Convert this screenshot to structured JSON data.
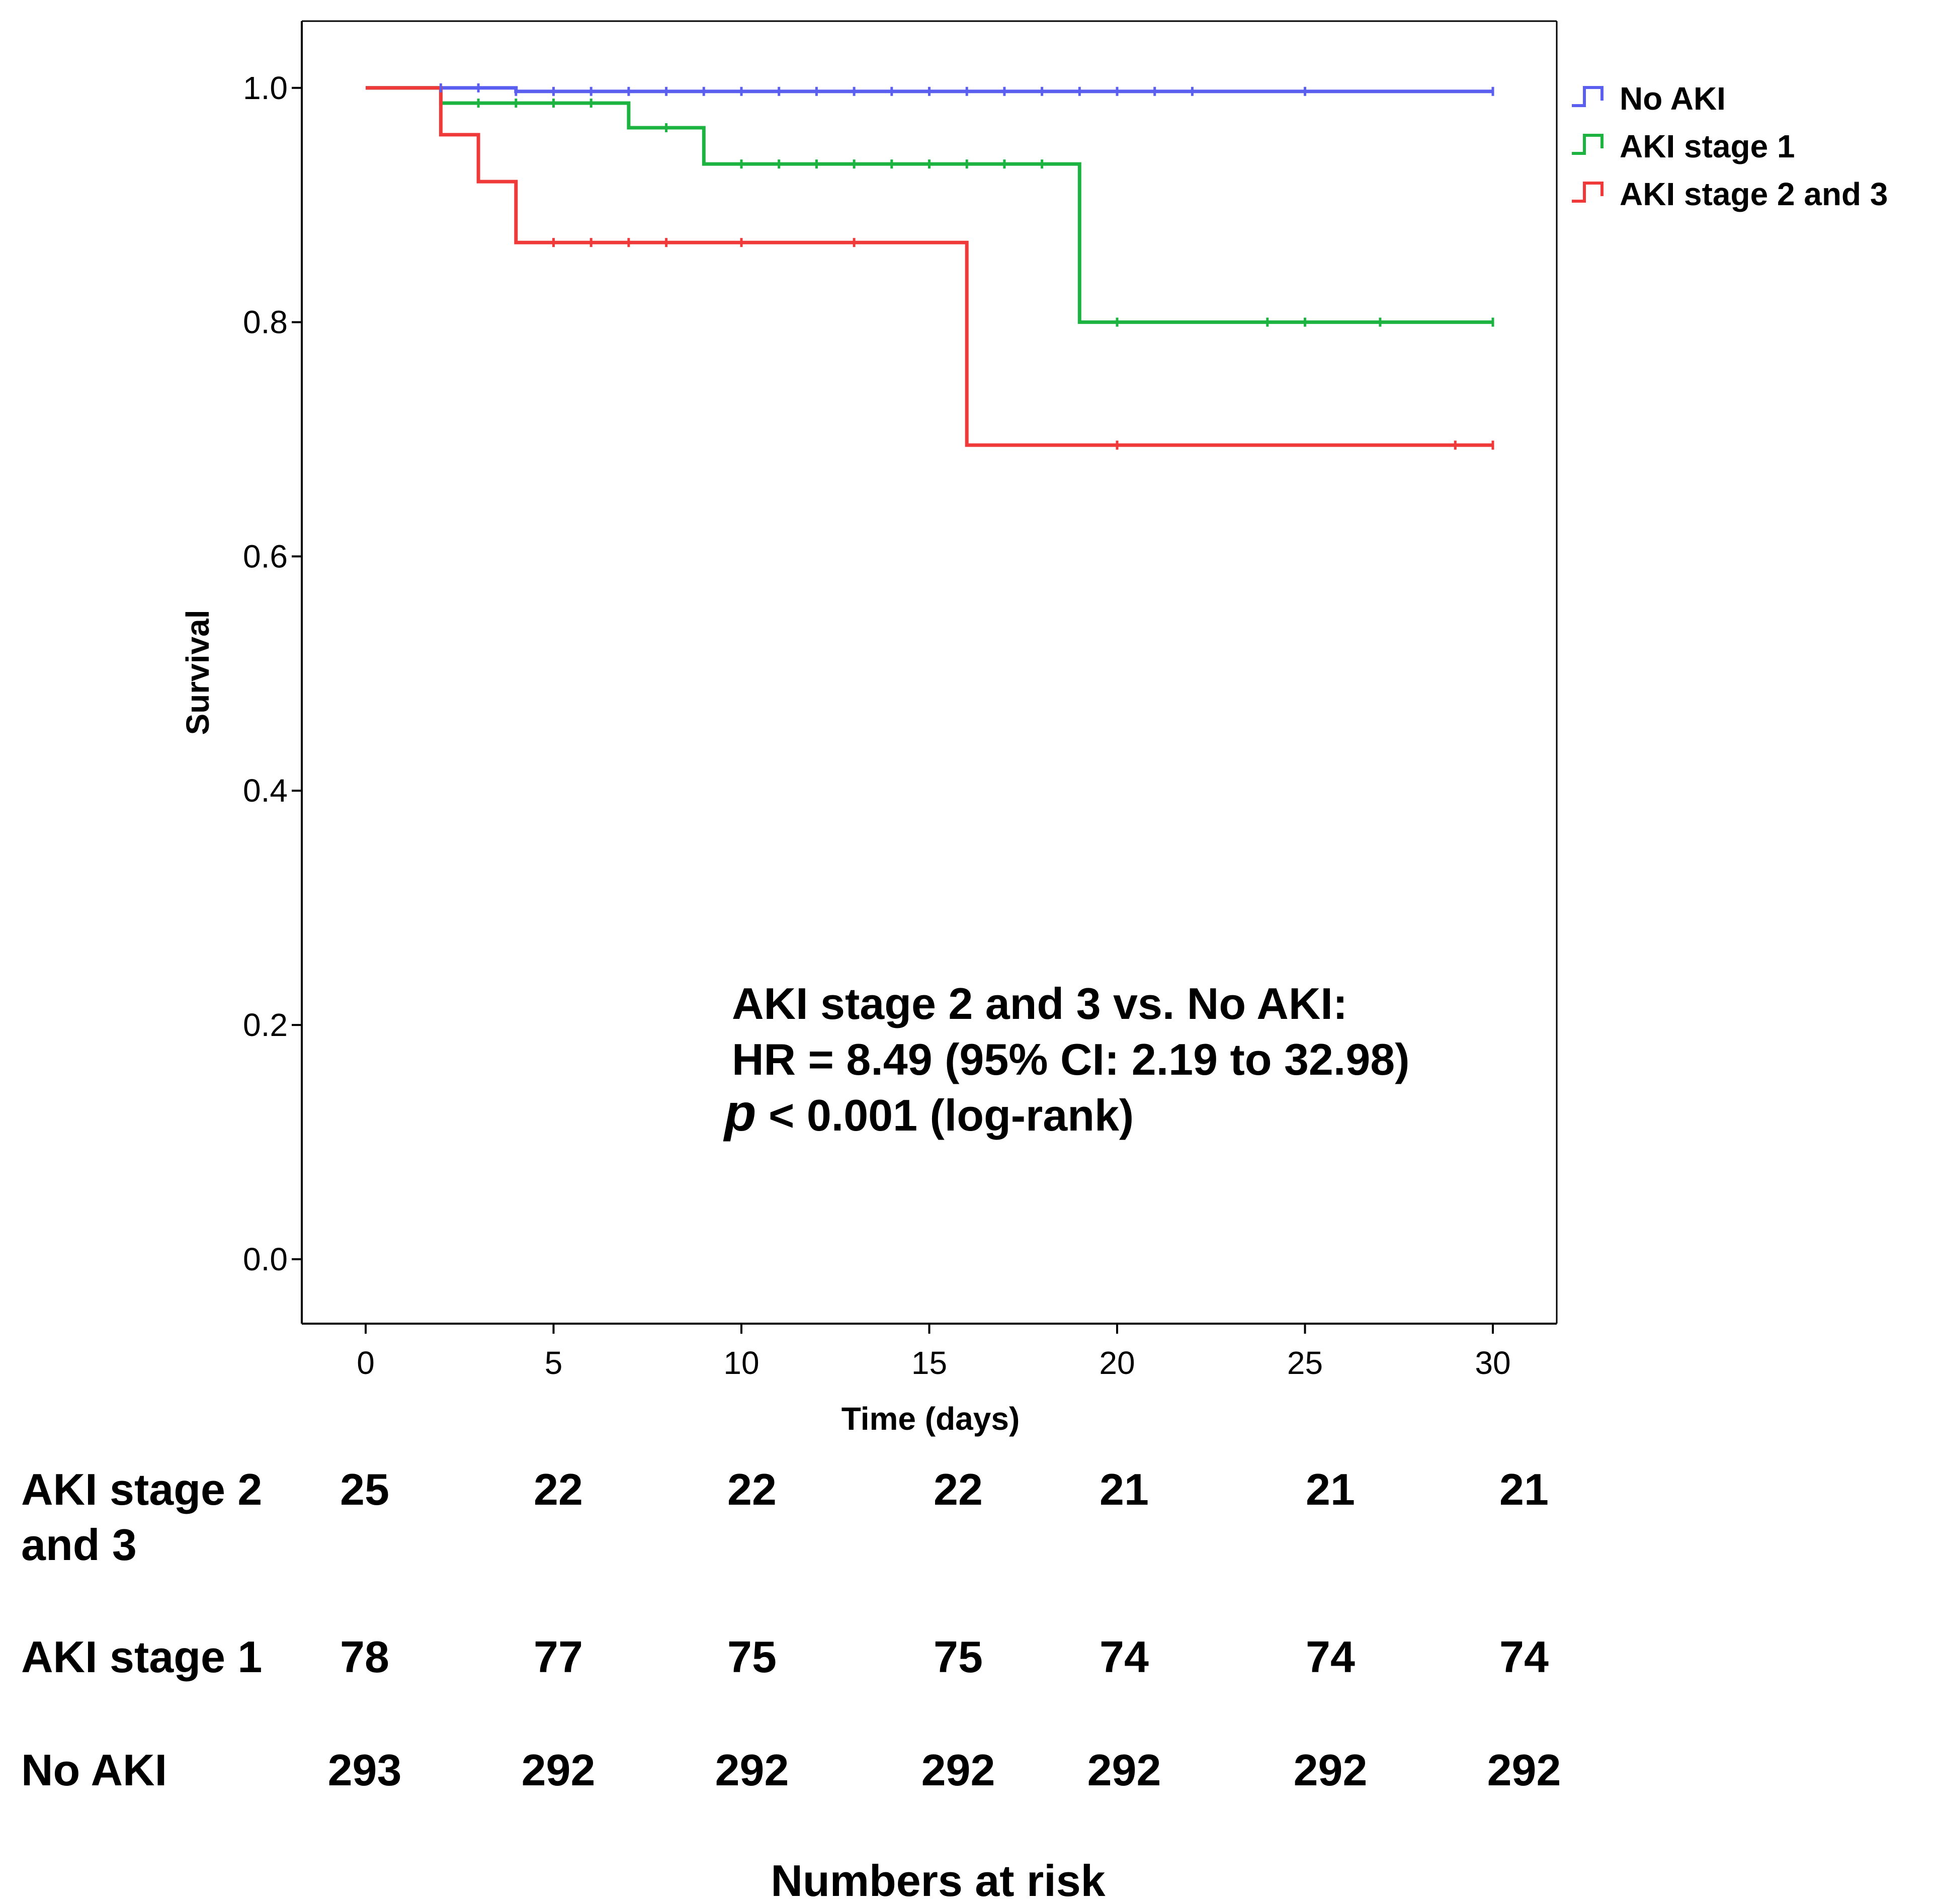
{
  "chart_data": {
    "type": "line",
    "subtype": "kaplan-meier",
    "xlabel": "Time (days)",
    "ylabel": "Survival",
    "xlim": [
      -1.7,
      31.7
    ],
    "ylim": [
      -0.055,
      1.057
    ],
    "x_ticks": [
      0,
      5,
      10,
      15,
      20,
      25,
      30
    ],
    "x_tick_labels": [
      "0",
      "5",
      "10",
      "15",
      "20",
      "25",
      "30"
    ],
    "y_ticks": [
      0.0,
      0.2,
      0.4,
      0.6,
      0.8,
      1.0
    ],
    "y_tick_labels": [
      "0.0",
      "0.2",
      "0.4",
      "0.6",
      "0.8",
      "1.0"
    ],
    "grid": false,
    "legend_position": "top-right outside",
    "series": [
      {
        "name": "No AKI",
        "color": "#5a5ff0",
        "steps": [
          [
            0,
            1.0
          ],
          [
            4,
            0.997
          ],
          [
            30,
            0.997
          ]
        ],
        "censored_x": [
          2,
          3,
          4,
          5,
          6,
          7,
          8,
          9,
          10,
          11,
          12,
          13,
          14,
          15,
          16,
          17,
          18,
          19,
          20,
          21,
          22,
          25,
          30
        ]
      },
      {
        "name": "AKI stage 1",
        "color": "#1db341",
        "steps": [
          [
            0,
            1.0
          ],
          [
            2,
            0.987
          ],
          [
            7,
            0.966
          ],
          [
            9,
            0.935
          ],
          [
            19,
            0.8
          ],
          [
            30,
            0.8
          ]
        ],
        "censored_x": [
          3,
          4,
          5,
          6,
          8,
          10,
          11,
          12,
          13,
          14,
          15,
          16,
          17,
          18,
          20,
          24,
          25,
          27,
          30
        ]
      },
      {
        "name": "AKI stage 2 and 3",
        "color": "#f03a3a",
        "steps": [
          [
            0,
            1.0
          ],
          [
            2,
            0.96
          ],
          [
            3,
            0.92
          ],
          [
            4,
            0.868
          ],
          [
            16,
            0.695
          ],
          [
            30,
            0.695
          ]
        ],
        "censored_x": [
          5,
          6,
          7,
          8,
          10,
          13,
          20,
          29,
          30
        ]
      }
    ],
    "annotation": {
      "line1": "AKI stage 2 and 3 vs. No AKI:",
      "line2": "HR = 8.49 (95% CI: 2.19 to 32.98)",
      "line3_italic": "p",
      "line3_rest": " < 0.001 (log-rank)"
    },
    "risk_table": {
      "title": "Numbers at risk",
      "rows": [
        {
          "label_line1": "AKI stage 2",
          "label_line2": "and 3",
          "values": [
            "25",
            "22",
            "22",
            "22",
            "21",
            "21",
            "21"
          ]
        },
        {
          "label_line1": "AKI stage 1",
          "label_line2": "",
          "values": [
            "78",
            "77",
            "75",
            "75",
            "74",
            "74",
            "74"
          ]
        },
        {
          "label_line1": "No AKI",
          "label_line2": "",
          "values": [
            "293",
            "292",
            "292",
            "292",
            "292",
            "292",
            "292"
          ]
        }
      ]
    }
  }
}
